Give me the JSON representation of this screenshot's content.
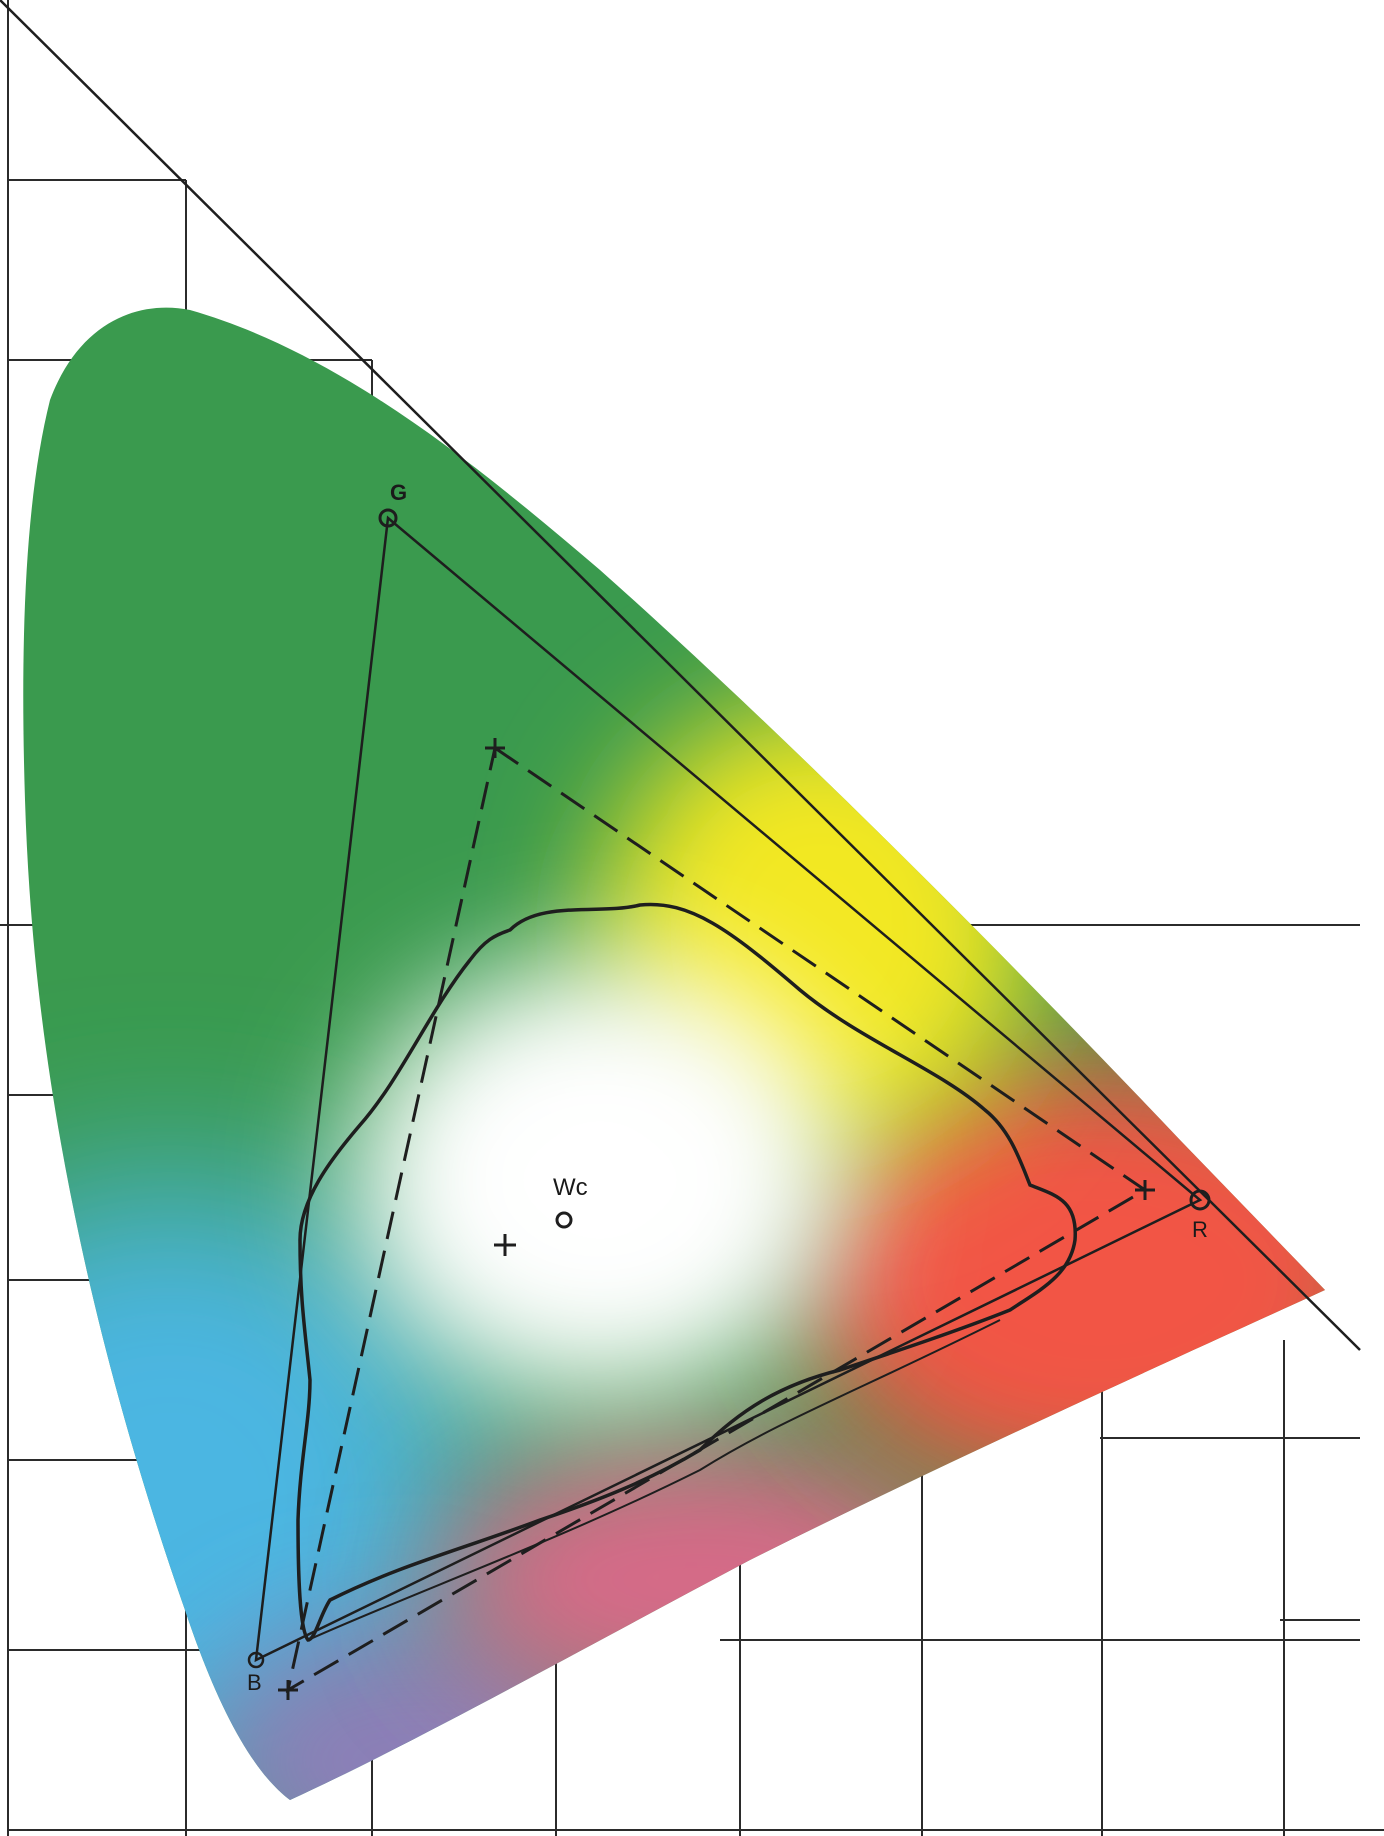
{
  "labels": {
    "green_primary": "G",
    "red_primary": "R",
    "blue_primary": "B",
    "white_point": "Wc"
  },
  "colors": {
    "green": "#3a9a4e",
    "yellow": "#f3e823",
    "red": "#f25545",
    "magenta": "#d66a88",
    "violet": "#8c7fb8",
    "cyan": "#4cb6e2",
    "white": "#ffffff",
    "line": "#1e1e1e"
  }
}
